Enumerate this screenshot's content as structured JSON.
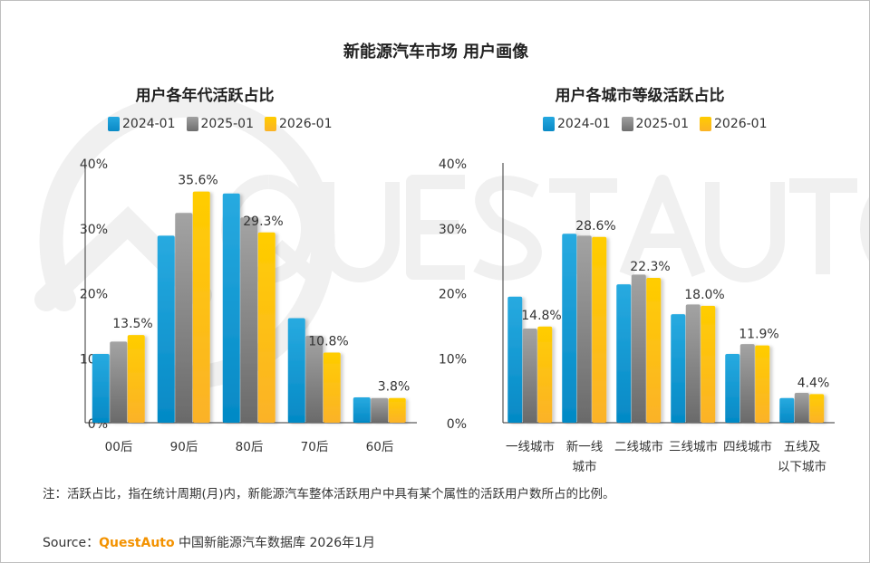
{
  "title": "新能源汽车市场 用户画像",
  "colors": {
    "2024-01": "#1a9fd8",
    "2025-01": "#8c8c8c",
    "2026-01": "#ffc20e"
  },
  "watermark": "QUESTAUTO",
  "chart_data": [
    {
      "type": "bar",
      "title": "用户各年代活跃占比",
      "categories": [
        "00后",
        "90后",
        "80后",
        "70后",
        "60后"
      ],
      "ylim": [
        0,
        40
      ],
      "yticks": [
        "0%",
        "10%",
        "20%",
        "30%",
        "40%"
      ],
      "grid": false,
      "legend": "top",
      "series": [
        {
          "name": "2024-01",
          "values": [
            10.6,
            28.8,
            35.3,
            16.1,
            3.9
          ]
        },
        {
          "name": "2025-01",
          "values": [
            12.5,
            32.3,
            31.6,
            13.4,
            3.8
          ]
        },
        {
          "name": "2026-01",
          "values": [
            13.5,
            35.6,
            29.3,
            10.8,
            3.8
          ]
        }
      ],
      "data_labels": [
        "13.5%",
        "35.6%",
        "29.3%",
        "10.8%",
        "3.8%"
      ]
    },
    {
      "type": "bar",
      "title": "用户各城市等级活跃占比",
      "categories": [
        "一线城市",
        "新一线城市",
        "二线城市",
        "三线城市",
        "四线城市",
        "五线及以下城市"
      ],
      "category_lines": [
        [
          "一线城市"
        ],
        [
          "新一线",
          "城市"
        ],
        [
          "二线城市"
        ],
        [
          "三线城市"
        ],
        [
          "四线城市"
        ],
        [
          "五线及",
          "以下城市"
        ]
      ],
      "ylim": [
        0,
        40
      ],
      "yticks": [
        "0%",
        "10%",
        "20%",
        "30%",
        "40%"
      ],
      "grid": false,
      "legend": "top",
      "series": [
        {
          "name": "2024-01",
          "values": [
            19.4,
            29.1,
            21.3,
            16.7,
            10.6,
            3.8
          ]
        },
        {
          "name": "2025-01",
          "values": [
            14.5,
            28.8,
            22.8,
            18.2,
            12.1,
            4.6
          ]
        },
        {
          "name": "2026-01",
          "values": [
            14.8,
            28.6,
            22.3,
            18.0,
            11.9,
            4.4
          ]
        }
      ],
      "data_labels": [
        "14.8%",
        "28.6%",
        "22.3%",
        "18.0%",
        "11.9%",
        "4.4%"
      ]
    }
  ],
  "note": "注：活跃占比，指在统计周期(月)内，新能源汽车整体活跃用户中具有某个属性的活跃用户数所占的比例。",
  "source": {
    "label": "Source：",
    "brand": "QuestAuto",
    "text": " 中国新能源汽车数据库 2026年1月"
  }
}
